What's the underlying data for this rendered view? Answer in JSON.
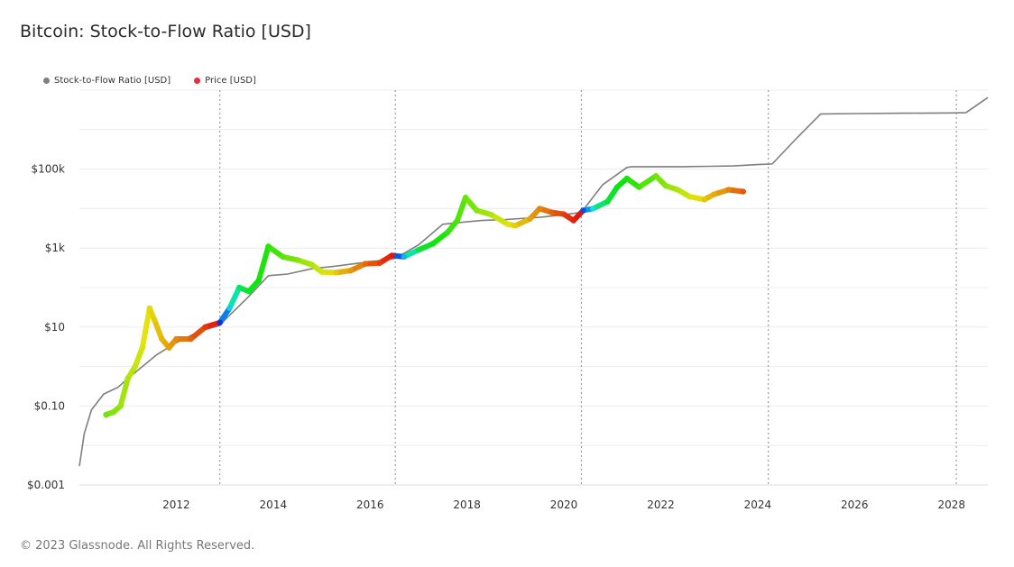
{
  "title": "Bitcoin: Stock-to-Flow Ratio [USD]",
  "footer": "© 2023 Glassnode. All Rights Reserved.",
  "legend": [
    {
      "label": "Stock-to-Flow Ratio [USD]",
      "color": "#7f7f7f"
    },
    {
      "label": "Price [USD]",
      "color": "#f0293e"
    }
  ],
  "chart_data": {
    "type": "line",
    "title": "Bitcoin: Stock-to-Flow Ratio [USD]",
    "xlabel": "",
    "ylabel": "",
    "y_scale": "log",
    "xlim": [
      2010.0,
      2028.75
    ],
    "ylim": [
      0.001,
      10000000
    ],
    "x_ticks": [
      2012,
      2014,
      2016,
      2018,
      2020,
      2022,
      2024,
      2026,
      2028
    ],
    "y_tick_labels": [
      {
        "value": 0.001,
        "label": "$0.001"
      },
      {
        "value": 0.1,
        "label": "$0.10"
      },
      {
        "value": 10,
        "label": "$10"
      },
      {
        "value": 1000,
        "label": "$1k"
      },
      {
        "value": 100000,
        "label": "$100k"
      }
    ],
    "halving_lines": [
      2012.9,
      2016.52,
      2020.36,
      2024.22,
      2028.1
    ],
    "series": [
      {
        "name": "Stock-to-Flow Ratio [USD]",
        "color": "#7f7f7f",
        "x": [
          2010.0,
          2010.1,
          2010.25,
          2010.5,
          2010.8,
          2011.0,
          2011.3,
          2011.6,
          2012.0,
          2012.5,
          2012.9,
          2013.0,
          2013.5,
          2013.9,
          2014.3,
          2014.8,
          2015.3,
          2015.8,
          2016.3,
          2016.52,
          2017.0,
          2017.5,
          2017.9,
          2018.3,
          2018.8,
          2019.5,
          2020.0,
          2020.36,
          2020.8,
          2021.3,
          2021.4,
          2022.0,
          2022.5,
          2023.0,
          2023.5,
          2024.0,
          2024.3,
          2024.8,
          2025.3,
          2026.0,
          2027.0,
          2028.0,
          2028.3,
          2028.75
        ],
        "y": [
          0.003,
          0.02,
          0.08,
          0.2,
          0.3,
          0.5,
          1.0,
          2.0,
          4.0,
          8.0,
          11.0,
          15.0,
          60.0,
          200.0,
          220.0,
          300.0,
          350.0,
          420.0,
          500.0,
          550.0,
          1200.0,
          4000.0,
          4500.0,
          5000.0,
          5300.0,
          6000.0,
          7000.0,
          8000.0,
          40000.0,
          110000.0,
          115000.0,
          115000.0,
          115000.0,
          118000.0,
          120000.0,
          130000.0,
          135000.0,
          600000.0,
          2500000.0,
          2550000.0,
          2600000.0,
          2650000.0,
          2700000.0,
          6500000.0
        ]
      },
      {
        "name": "Price [USD]",
        "color": "#f0293e",
        "x": [
          2010.55,
          2010.7,
          2010.85,
          2011.0,
          2011.15,
          2011.3,
          2011.45,
          2011.55,
          2011.7,
          2011.85,
          2012.0,
          2012.3,
          2012.6,
          2012.9,
          2013.1,
          2013.3,
          2013.5,
          2013.7,
          2013.9,
          2014.2,
          2014.5,
          2014.8,
          2015.0,
          2015.3,
          2015.6,
          2015.9,
          2016.2,
          2016.45,
          2016.7,
          2017.0,
          2017.3,
          2017.6,
          2017.8,
          2017.97,
          2018.2,
          2018.5,
          2018.85,
          2019.0,
          2019.3,
          2019.5,
          2019.75,
          2020.0,
          2020.2,
          2020.4,
          2020.6,
          2020.9,
          2021.1,
          2021.3,
          2021.55,
          2021.9,
          2022.1,
          2022.35,
          2022.6,
          2022.9,
          2023.1,
          2023.4,
          2023.7
        ],
        "y": [
          0.06,
          0.07,
          0.1,
          0.5,
          1.0,
          3.0,
          30.0,
          15.0,
          5.0,
          3.0,
          5.0,
          5.0,
          10.0,
          13.0,
          30.0,
          100.0,
          80.0,
          150.0,
          1100.0,
          600.0,
          500.0,
          380.0,
          250.0,
          240.0,
          270.0,
          400.0,
          420.0,
          650.0,
          600.0,
          900.0,
          1300.0,
          2500.0,
          5000.0,
          19000.0,
          9000.0,
          7000.0,
          4000.0,
          3700.0,
          5500.0,
          10000.0,
          8000.0,
          7200.0,
          5000.0,
          9000.0,
          10000.0,
          15000.0,
          35000.0,
          58000.0,
          35000.0,
          67000.0,
          38000.0,
          30000.0,
          20000.0,
          17000.0,
          23000.0,
          30000.0,
          27000.0
        ]
      }
    ]
  }
}
